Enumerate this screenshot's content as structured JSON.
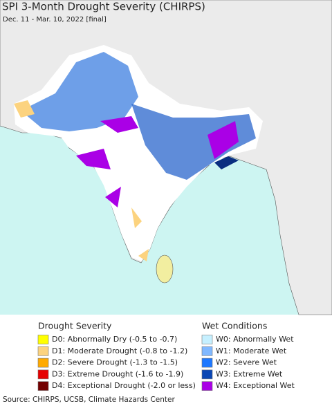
{
  "title": "SPI 3-Month Drought Severity (CHIRPS)",
  "subtitle": "Dec. 11 - Mar. 10, 2022 [final]",
  "legend": {
    "drought": {
      "title": "Drought Severity",
      "items": [
        {
          "label": "D0: Abnormally Dry (-0.5 to -0.7)",
          "color": "#ffff00"
        },
        {
          "label": "D1: Moderate Drought (-0.8 to -1.2)",
          "color": "#fcd37f"
        },
        {
          "label": "D2: Severe Drought (-1.3 to -1.5)",
          "color": "#ffaa00"
        },
        {
          "label": "D3: Extreme Drought (-1.6 to -1.9)",
          "color": "#e60000"
        },
        {
          "label": "D4: Exceptional Drought (-2.0 or less)",
          "color": "#730000"
        }
      ]
    },
    "wet": {
      "title": "Wet Conditions",
      "items": [
        {
          "label": "W0: Abnormally Wet",
          "color": "#c6f0ff"
        },
        {
          "label": "W1: Moderate Wet",
          "color": "#80b8ff"
        },
        {
          "label": "W2: Severe Wet",
          "color": "#1e78ff"
        },
        {
          "label": "W3: Extreme Wet",
          "color": "#0a46b4"
        },
        {
          "label": "W4: Exceptional Wet",
          "color": "#aa00e6"
        }
      ]
    }
  },
  "source": "Source: CHIRPS, UCSB, Climate Hazards Center"
}
